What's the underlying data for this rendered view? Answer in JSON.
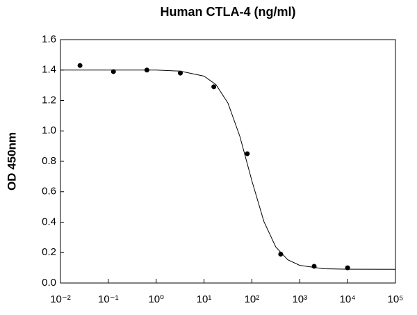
{
  "chart_data": {
    "type": "scatter",
    "title": "Human CTLA-4 (ng/ml)",
    "y_label": "OD 450nm",
    "x_scale": "log",
    "xlim": [
      0.01,
      100000
    ],
    "xticks": [
      {
        "value": 0.01,
        "label": "10⁻²"
      },
      {
        "value": 0.1,
        "label": "10⁻¹"
      },
      {
        "value": 1,
        "label": "10⁰"
      },
      {
        "value": 10,
        "label": "10¹"
      },
      {
        "value": 100,
        "label": "10²"
      },
      {
        "value": 1000,
        "label": "10³"
      },
      {
        "value": 10000,
        "label": "10⁴"
      },
      {
        "value": 100000,
        "label": "10⁵"
      }
    ],
    "ylim": [
      0,
      1.6
    ],
    "yticks": [
      {
        "value": 0,
        "label": "0.0"
      },
      0.2,
      0.4,
      0.6,
      0.8,
      {
        "value": 1,
        "label": "1.0"
      },
      1.2,
      1.4,
      1.6
    ],
    "series": [
      {
        "mode": "markers",
        "color": "#000000",
        "x": [
          0.0256,
          0.128,
          0.64,
          3.2,
          16,
          80,
          400,
          2000,
          10000
        ],
        "values": [
          1.43,
          1.39,
          1.4,
          1.38,
          1.29,
          0.85,
          0.19,
          0.11,
          0.1
        ]
      },
      {
        "mode": "line",
        "color": "#000000",
        "x": [
          0.01,
          0.1,
          1,
          3.16,
          10,
          17.8,
          31.6,
          56.2,
          100,
          178,
          316,
          562,
          1000,
          3162,
          10000,
          100000
        ],
        "values": [
          1.4,
          1.4,
          1.4,
          1.393,
          1.36,
          1.304,
          1.183,
          0.963,
          0.672,
          0.405,
          0.237,
          0.153,
          0.116,
          0.094,
          0.091,
          0.09
        ]
      }
    ]
  }
}
